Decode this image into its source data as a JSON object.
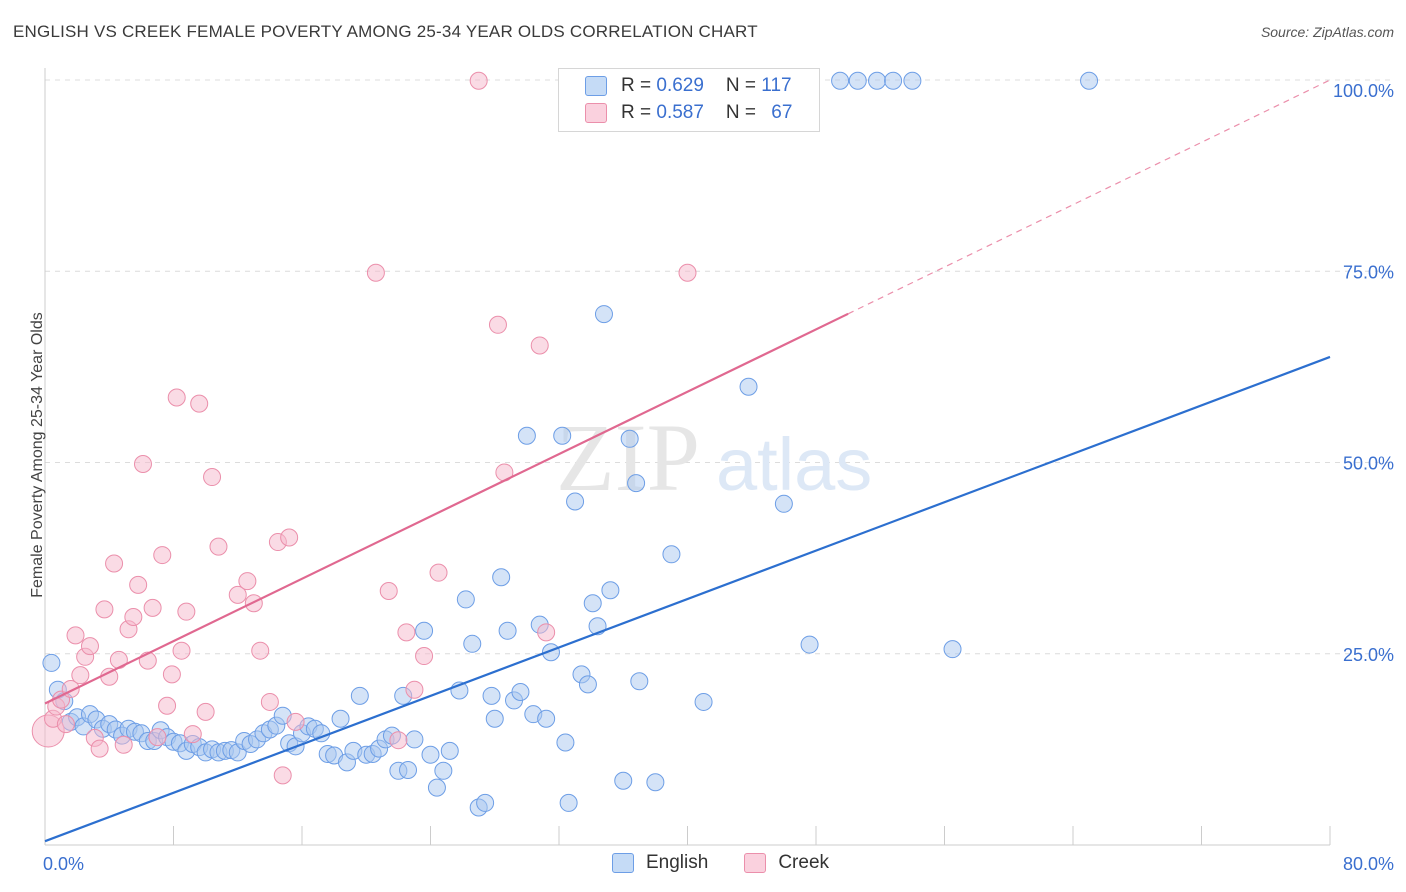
{
  "title": "ENGLISH VS CREEK FEMALE POVERTY AMONG 25-34 YEAR OLDS CORRELATION CHART",
  "source": "Source: ZipAtlas.com",
  "watermark": {
    "zip": "ZIP",
    "atlas": "atlas"
  },
  "legend": {
    "english": {
      "r_label": "R = ",
      "r": "0.629",
      "n_label": "N = ",
      "n": "117"
    },
    "creek": {
      "r_label": "R = ",
      "r": "0.587",
      "n_label": "N = ",
      "n": "67"
    }
  },
  "colors": {
    "english_fill": "#a9c8f0",
    "english_stroke": "#6d9ee6",
    "english_line": "#2c6fcf",
    "creek_fill": "#f5b8cb",
    "creek_stroke": "#eb8fab",
    "creek_line": "#e06890",
    "axis_text": "#3a6fcf",
    "grid": "#dcdcdc"
  },
  "chart_data": {
    "type": "scatter",
    "title": "ENGLISH VS CREEK FEMALE POVERTY AMONG 25-34 YEAR OLDS CORRELATION CHART",
    "xlabel": "",
    "ylabel": "Female Poverty Among 25-34 Year Olds",
    "xlim": [
      0,
      80
    ],
    "ylim": [
      0,
      100
    ],
    "x_tick_labels": [
      {
        "value": 0,
        "label": "0.0%"
      },
      {
        "value": 80,
        "label": "80.0%"
      }
    ],
    "y_tick_labels": [
      {
        "value": 25,
        "label": "25.0%"
      },
      {
        "value": 50,
        "label": "50.0%"
      },
      {
        "value": 75,
        "label": "75.0%"
      },
      {
        "value": 100,
        "label": "100.0%"
      }
    ],
    "grid": true,
    "legend_position": "top-center",
    "series": [
      {
        "name": "English",
        "trend": {
          "x": [
            0,
            80
          ],
          "y": [
            0.5,
            63.8
          ]
        },
        "points": [
          [
            0.4,
            23.8
          ],
          [
            0.8,
            20.3
          ],
          [
            1.2,
            18.8
          ],
          [
            1.6,
            16.1
          ],
          [
            2.0,
            16.7
          ],
          [
            2.4,
            15.5
          ],
          [
            2.8,
            17.1
          ],
          [
            3.2,
            16.4
          ],
          [
            3.6,
            15.2
          ],
          [
            4.0,
            15.8
          ],
          [
            4.4,
            15.1
          ],
          [
            4.8,
            14.3
          ],
          [
            5.2,
            15.2
          ],
          [
            5.6,
            14.8
          ],
          [
            6.0,
            14.6
          ],
          [
            6.4,
            13.6
          ],
          [
            6.8,
            13.6
          ],
          [
            7.2,
            15.0
          ],
          [
            7.6,
            14.1
          ],
          [
            8.0,
            13.5
          ],
          [
            8.4,
            13.3
          ],
          [
            8.8,
            12.3
          ],
          [
            9.2,
            13.2
          ],
          [
            9.6,
            12.8
          ],
          [
            10.0,
            12.1
          ],
          [
            10.4,
            12.5
          ],
          [
            10.8,
            12.1
          ],
          [
            11.2,
            12.3
          ],
          [
            11.6,
            12.4
          ],
          [
            12.0,
            12.1
          ],
          [
            12.4,
            13.6
          ],
          [
            12.8,
            13.2
          ],
          [
            13.2,
            13.8
          ],
          [
            13.6,
            14.6
          ],
          [
            14.0,
            15.1
          ],
          [
            14.4,
            15.6
          ],
          [
            14.8,
            16.9
          ],
          [
            15.2,
            13.3
          ],
          [
            15.6,
            12.9
          ],
          [
            16.0,
            14.6
          ],
          [
            16.4,
            15.5
          ],
          [
            16.8,
            15.2
          ],
          [
            17.2,
            14.6
          ],
          [
            17.6,
            11.9
          ],
          [
            18.0,
            11.7
          ],
          [
            18.4,
            16.5
          ],
          [
            18.8,
            10.8
          ],
          [
            19.2,
            12.3
          ],
          [
            19.6,
            19.5
          ],
          [
            20.0,
            11.8
          ],
          [
            20.4,
            11.9
          ],
          [
            20.8,
            12.6
          ],
          [
            21.2,
            13.8
          ],
          [
            21.6,
            14.3
          ],
          [
            22.0,
            9.7
          ],
          [
            22.3,
            19.5
          ],
          [
            22.6,
            9.8
          ],
          [
            23.0,
            13.8
          ],
          [
            23.6,
            28.0
          ],
          [
            24.0,
            11.8
          ],
          [
            24.4,
            7.5
          ],
          [
            24.8,
            9.7
          ],
          [
            25.2,
            12.3
          ],
          [
            25.8,
            20.2
          ],
          [
            26.2,
            32.1
          ],
          [
            26.6,
            26.3
          ],
          [
            27.0,
            4.9
          ],
          [
            27.4,
            5.5
          ],
          [
            27.8,
            19.5
          ],
          [
            28.0,
            16.5
          ],
          [
            28.4,
            35.0
          ],
          [
            28.8,
            28.0
          ],
          [
            29.2,
            18.9
          ],
          [
            29.6,
            20.0
          ],
          [
            30.0,
            53.5
          ],
          [
            30.4,
            17.1
          ],
          [
            30.8,
            28.8
          ],
          [
            31.2,
            16.5
          ],
          [
            31.5,
            25.2
          ],
          [
            32.2,
            53.5
          ],
          [
            32.4,
            13.4
          ],
          [
            32.6,
            5.5
          ],
          [
            33.0,
            44.9
          ],
          [
            33.4,
            22.3
          ],
          [
            33.8,
            21.0
          ],
          [
            34.1,
            31.6
          ],
          [
            34.4,
            28.6
          ],
          [
            34.8,
            69.4
          ],
          [
            35.2,
            33.3
          ],
          [
            36.0,
            8.4
          ],
          [
            36.4,
            53.1
          ],
          [
            36.8,
            47.3
          ],
          [
            37.0,
            21.4
          ],
          [
            38.0,
            8.2
          ],
          [
            39.0,
            38.0
          ],
          [
            39.2,
            99.9
          ],
          [
            40.2,
            99.9
          ],
          [
            41.0,
            18.7
          ],
          [
            42.4,
            99.9
          ],
          [
            43.8,
            59.9
          ],
          [
            46.0,
            44.6
          ],
          [
            47.6,
            26.2
          ],
          [
            49.5,
            99.9
          ],
          [
            50.6,
            99.9
          ],
          [
            51.8,
            99.9
          ],
          [
            52.8,
            99.9
          ],
          [
            54.0,
            99.9
          ],
          [
            56.5,
            25.6
          ],
          [
            65.0,
            99.9
          ]
        ]
      },
      {
        "name": "Creek",
        "trend": {
          "x": [
            0,
            80
          ],
          "y": [
            18.5,
            100
          ]
        },
        "trend_solid_to_x": 50,
        "points": [
          [
            0.2,
            14.9
          ],
          [
            0.5,
            16.5
          ],
          [
            0.7,
            18.1
          ],
          [
            1.0,
            19.0
          ],
          [
            1.3,
            15.8
          ],
          [
            1.6,
            20.4
          ],
          [
            1.9,
            27.4
          ],
          [
            2.2,
            22.2
          ],
          [
            2.5,
            24.6
          ],
          [
            2.8,
            26.0
          ],
          [
            3.1,
            14.0
          ],
          [
            3.4,
            12.6
          ],
          [
            3.7,
            30.8
          ],
          [
            4.0,
            22.0
          ],
          [
            4.3,
            36.8
          ],
          [
            4.6,
            24.2
          ],
          [
            4.9,
            13.1
          ],
          [
            5.2,
            28.2
          ],
          [
            5.5,
            29.8
          ],
          [
            5.8,
            34.0
          ],
          [
            6.1,
            49.8
          ],
          [
            6.4,
            24.1
          ],
          [
            6.7,
            31.0
          ],
          [
            7.0,
            14.1
          ],
          [
            7.3,
            37.9
          ],
          [
            7.6,
            18.2
          ],
          [
            7.9,
            22.3
          ],
          [
            8.2,
            58.5
          ],
          [
            8.5,
            25.4
          ],
          [
            8.8,
            30.5
          ],
          [
            9.2,
            14.5
          ],
          [
            9.6,
            57.7
          ],
          [
            10.0,
            17.4
          ],
          [
            10.4,
            48.1
          ],
          [
            10.8,
            39.0
          ],
          [
            12.0,
            32.7
          ],
          [
            12.6,
            34.5
          ],
          [
            13.0,
            31.6
          ],
          [
            13.4,
            25.4
          ],
          [
            14.0,
            18.7
          ],
          [
            14.5,
            39.6
          ],
          [
            14.8,
            9.1
          ],
          [
            15.2,
            40.2
          ],
          [
            15.6,
            16.1
          ],
          [
            20.6,
            74.8
          ],
          [
            21.4,
            33.2
          ],
          [
            22.0,
            13.7
          ],
          [
            22.5,
            27.8
          ],
          [
            23.0,
            20.3
          ],
          [
            23.6,
            24.7
          ],
          [
            24.5,
            35.6
          ],
          [
            27.0,
            99.9
          ],
          [
            28.2,
            68.0
          ],
          [
            28.6,
            48.7
          ],
          [
            30.8,
            65.3
          ],
          [
            31.2,
            27.8
          ],
          [
            40.0,
            74.8
          ]
        ]
      }
    ]
  }
}
